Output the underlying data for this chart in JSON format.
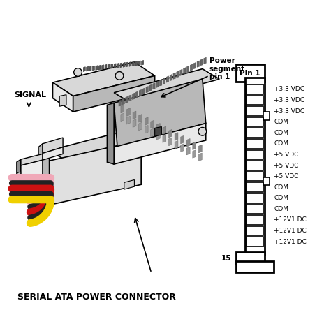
{
  "bg_color": "#ffffff",
  "signal_label": "SIGNAL",
  "serial_ata_label": "SERIAL ATA POWER CONNECTOR",
  "power_segment_label": "Power\nsegment\npin 1",
  "pin1_label": "Pin 1",
  "pin15_label": "15",
  "pin_labels": [
    "+3.3 VDC",
    "+3.3 VDC",
    "+3.3 VDC",
    "COM",
    "COM",
    "COM",
    "+5 VDC",
    "+5 VDC",
    "+5 VDC",
    "COM",
    "COM",
    "COM",
    "+12V1 DC",
    "+12V1 DC",
    "+12V1 DC"
  ],
  "cable_colors": [
    "#f0a8b8",
    "#222222",
    "#cc1111",
    "#222222",
    "#f0d000"
  ],
  "notch_pins": [
    3,
    9
  ]
}
